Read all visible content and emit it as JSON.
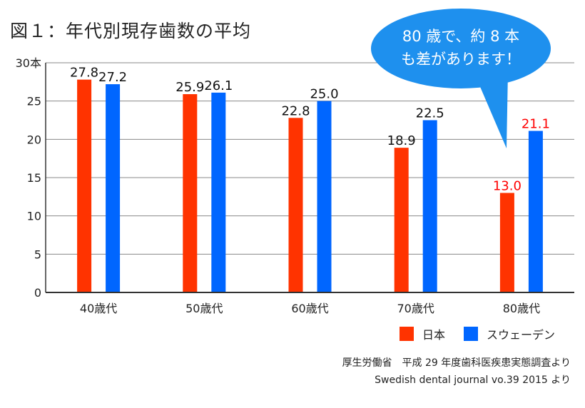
{
  "title": "図１：年代別現存歯数の平均",
  "callout": {
    "line1": "80 歳で、約 8 本",
    "line2": "も差があります！"
  },
  "sources": [
    "厚生労働省　平成 29 年度歯科医疾患実態調査より",
    "Swedish dental journal vo.39 2015 より"
  ],
  "colors": {
    "japan": "#ff3300",
    "sweden": "#0066ff",
    "highlight_label": "#ff0000",
    "callout": "#1e90ee",
    "grid": "#888888",
    "axis": "#333333"
  },
  "chart_data": {
    "type": "bar",
    "title": "図１：年代別現存歯数の平均",
    "categories": [
      "40歳代",
      "50歳代",
      "60歳代",
      "70歳代",
      "80歳代"
    ],
    "series": [
      {
        "name": "日本",
        "values": [
          27.8,
          25.9,
          22.8,
          18.9,
          13.0
        ],
        "labels": [
          "27.8",
          "25.9",
          "22.8",
          "18.9",
          "13.0"
        ]
      },
      {
        "name": "スウェーデン",
        "values": [
          27.2,
          26.1,
          25.0,
          22.5,
          21.1
        ],
        "labels": [
          "27.2",
          "26.1",
          "25.0",
          "22.5",
          "21.1"
        ]
      }
    ],
    "highlight_category": "80歳代",
    "ylim": [
      0,
      30
    ],
    "yticks": [
      "0",
      "5",
      "10",
      "15",
      "20",
      "25",
      "30本"
    ],
    "ytick_values": [
      0,
      5,
      10,
      15,
      20,
      25,
      30
    ],
    "grid": true,
    "legend_position": "bottom-right"
  }
}
